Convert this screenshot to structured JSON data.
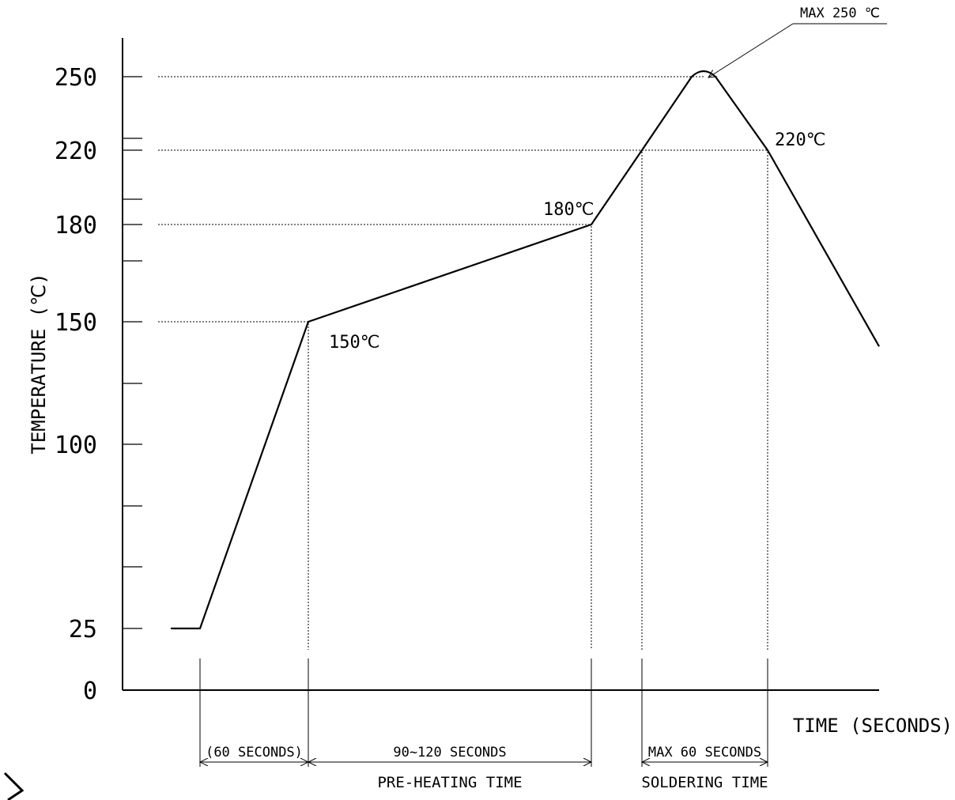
{
  "chart_data": {
    "type": "line",
    "title": "",
    "xlabel": "TIME (SECONDS)",
    "ylabel": "TEMPERATURE (℃)",
    "y_ticks": [
      {
        "value": 0,
        "label": "0"
      },
      {
        "value": 25,
        "label": "25"
      },
      {
        "value": 100,
        "label": "100"
      },
      {
        "value": 150,
        "label": "150"
      },
      {
        "value": 180,
        "label": "180"
      },
      {
        "value": 220,
        "label": "220"
      },
      {
        "value": 250,
        "label": "250"
      }
    ],
    "minor_ticks": [
      50,
      75,
      125,
      165,
      200,
      225
    ],
    "ylim": [
      0,
      270
    ],
    "profile": [
      {
        "t": 0,
        "temp": 25
      },
      {
        "t": 12,
        "temp": 25
      },
      {
        "t": 60,
        "temp": 150
      },
      {
        "t": 185,
        "temp": 180
      },
      {
        "t": 208,
        "temp": 220
      },
      {
        "t": 229,
        "temp": 250
      },
      {
        "t": 238,
        "temp": 250
      },
      {
        "t": 263,
        "temp": 220
      },
      {
        "t": 315,
        "temp": 140
      }
    ],
    "point_labels": [
      {
        "id": "150",
        "text": "150℃"
      },
      {
        "id": "180",
        "text": "180℃"
      },
      {
        "id": "220",
        "text": "220℃"
      }
    ],
    "peak_label": "MAX 250 ℃",
    "intervals": [
      {
        "from": 12,
        "to": 60,
        "label": "(60 SECONDS)",
        "caption": ""
      },
      {
        "from": 60,
        "to": 185,
        "label": "90~120 SECONDS",
        "caption": "PRE-HEATING TIME"
      },
      {
        "from": 208,
        "to": 263,
        "label": "MAX 60 SECONDS",
        "caption": "SOLDERING TIME"
      }
    ]
  }
}
